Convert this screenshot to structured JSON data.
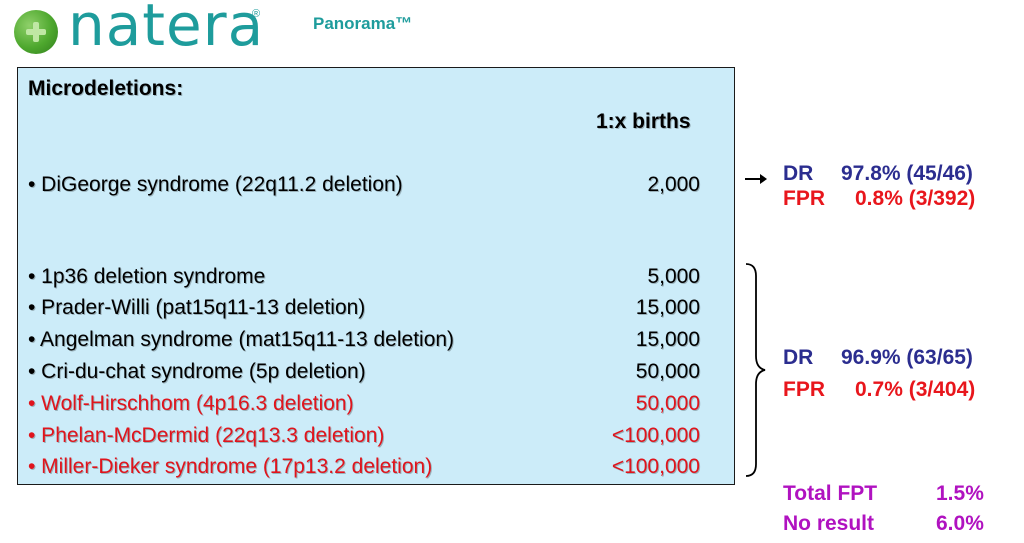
{
  "brand": {
    "name": "natera",
    "tm": "®",
    "product": "Panorama™"
  },
  "panel": {
    "heading": "Microdeletions:",
    "column_header": "1:x births",
    "rows": [
      {
        "label": "• DiGeorge syndrome (22q11.2 deletion)",
        "value": "2,000"
      },
      {
        "label": "• 1p36 deletion syndrome",
        "value": "5,000"
      },
      {
        "label": "• Prader-Willi (pat15q11-13 deletion)",
        "value": "15,000"
      },
      {
        "label": "• Angelman syndrome (mat15q11-13 deletion)",
        "value": "15,000"
      },
      {
        "label": "• Cri-du-chat syndrome (5p deletion)",
        "value": "50,000"
      },
      {
        "label": "• Wolf-Hirschhom (4p16.3 deletion)",
        "value": "50,000"
      },
      {
        "label": "• Phelan-McDermid (22q13.3 deletion)",
        "value": "<100,000"
      },
      {
        "label": "• Miller-Dieker syndrome (17p13.2 deletion)",
        "value": "<100,000"
      }
    ]
  },
  "stats_digeorge": {
    "dr_label": "DR",
    "dr_value": "97.8% (45/46)",
    "fpr_label": "FPR",
    "fpr_value": "0.8% (3/392)"
  },
  "stats_others": {
    "dr_label": "DR",
    "dr_value": "96.9% (63/65)",
    "fpr_label": "FPR",
    "fpr_value": "0.7% (3/404)"
  },
  "totals": {
    "fpt_label": "Total FPT",
    "fpt_value": "1.5%",
    "noresult_label": "No result",
    "noresult_value": "6.0%"
  },
  "colors": {
    "brand_teal": "#1e9c9c",
    "panel_bg": "#ccecf9",
    "dr_blue": "#2b2d8f",
    "fpr_red": "#e8161c",
    "totals_purple": "#b012c0"
  }
}
